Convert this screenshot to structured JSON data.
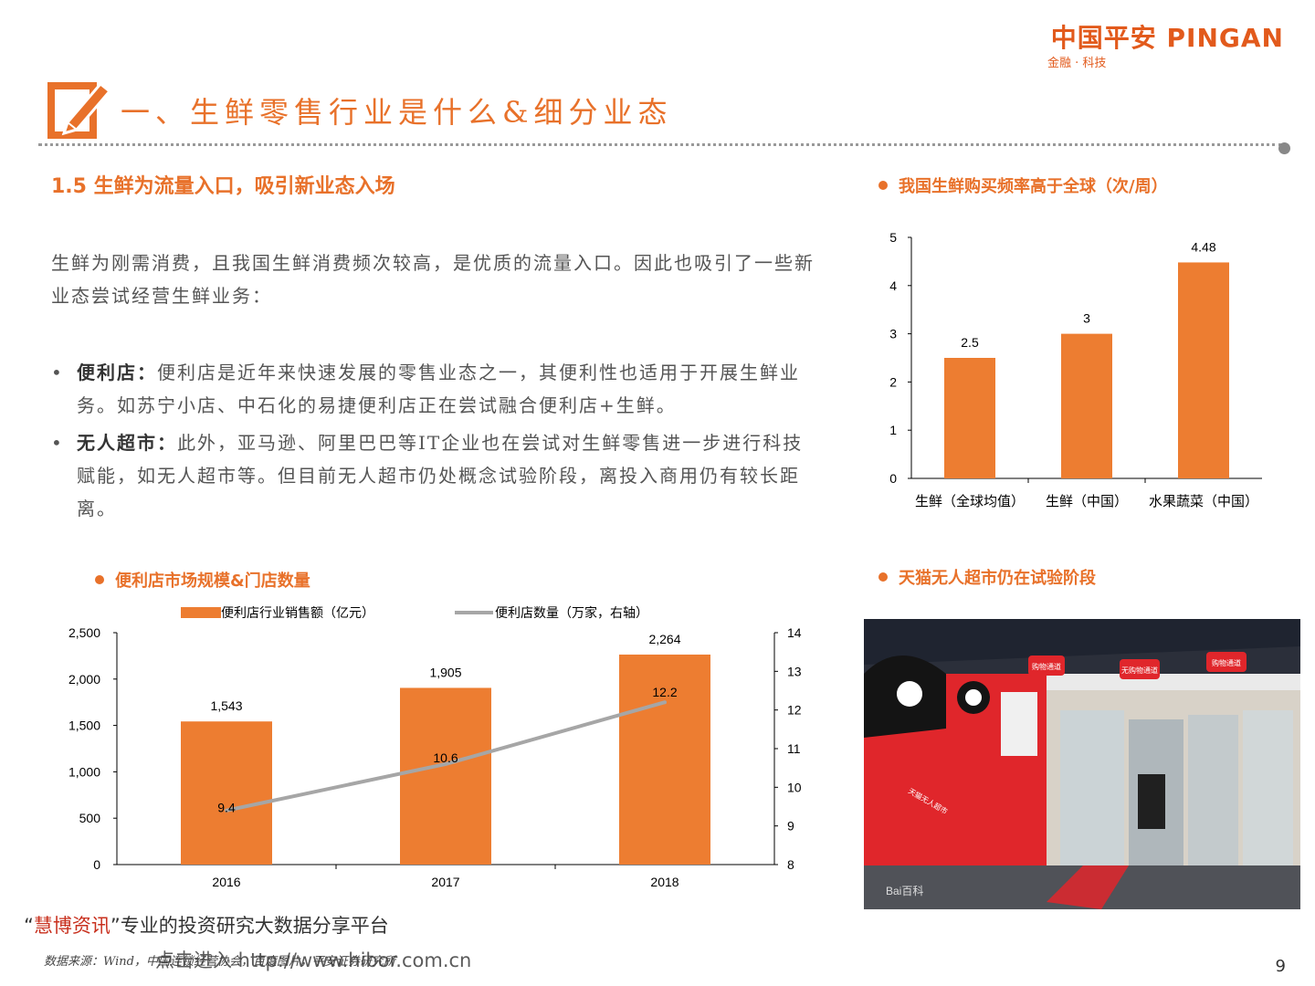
{
  "header": {
    "logo_text": "中国平安 PINGAN",
    "logo_subtitle": "金融 · 科技",
    "page_title": "一、生鲜零售行业是什么&细分业态"
  },
  "main": {
    "section_heading": "1.5  生鲜为流量入口，吸引新业态入场",
    "intro": "生鲜为刚需消费，且我国生鲜消费频次较高，是优质的流量入口。因此也吸引了一些新业态尝试经营生鲜业务：",
    "bullets": [
      {
        "lead": "便利店：",
        "text": "便利店是近年来快速发展的零售业态之一，其便利性也适用于开展生鲜业务。如苏宁小店、中石化的易捷便利店正在尝试融合便利店+生鲜。"
      },
      {
        "lead": "无人超市：",
        "text": "此外，亚马逊、阿里巴巴等IT企业也在尝试对生鲜零售进一步进行科技赋能，如无人超市等。但目前无人超市仍处概念试验阶段，离投入商用仍有较长距离。"
      }
    ]
  },
  "chart_titles": {
    "frequency": "我国生鲜购买频率高于全球（次/周）",
    "convenience": "便利店市场规模&门店数量",
    "photo": "天猫无人超市仍在试验阶段"
  },
  "chart_data": [
    {
      "type": "bar",
      "categories": [
        "生鲜（全球均值）",
        "生鲜（中国）",
        "水果蔬菜（中国）"
      ],
      "values": [
        2.5,
        3,
        4.48
      ],
      "value_labels": [
        "2.5",
        "3",
        "4.48"
      ],
      "ylim": [
        0,
        5
      ],
      "yticks": [
        "0",
        "1",
        "2",
        "3",
        "4",
        "5"
      ],
      "color": "#ed7d31",
      "grid": false
    },
    {
      "type": "bar",
      "categories": [
        "2016",
        "2017",
        "2018"
      ],
      "series": [
        {
          "name": "便利店行业销售额（亿元）",
          "type": "bar",
          "axis": "left",
          "values": [
            1543,
            1905,
            2264
          ],
          "labels": [
            "1,543",
            "1,905",
            "2,264"
          ],
          "color": "#ed7d31"
        },
        {
          "name": "便利店数量（万家，右轴）",
          "type": "line",
          "axis": "right",
          "values": [
            9.4,
            10.6,
            12.2
          ],
          "labels": [
            "9.4",
            "10.6",
            "12.2"
          ],
          "color": "#a6a6a6"
        }
      ],
      "ylim_left": [
        0,
        2500
      ],
      "yticks_left": [
        "0",
        "500",
        "1,000",
        "1,500",
        "2,000",
        "2,500"
      ],
      "ylim_right": [
        8,
        14
      ],
      "yticks_right": [
        "8",
        "9",
        "10",
        "11",
        "12",
        "13",
        "14"
      ],
      "legend": "top",
      "grid": false
    }
  ],
  "photo": {
    "watermark": "Bai百科",
    "signs": [
      "购物通道",
      "无购物通道",
      "购物通道"
    ],
    "booth_label": "天猫无人超市"
  },
  "footer": {
    "brand_open": "“",
    "brand_highlight": "慧博资讯",
    "brand_rest": "”专业的投资研究大数据分享平台",
    "source": "数据来源：Wind，中国连锁经营协会，百度图片，平安证券研究所",
    "url": "点击进入 http://www.hibor.com.cn",
    "page_number": "9"
  },
  "colors": {
    "accent": "#e8712a",
    "bar": "#ed7d31",
    "line": "#a6a6a6",
    "logo": "#e25a1c"
  }
}
